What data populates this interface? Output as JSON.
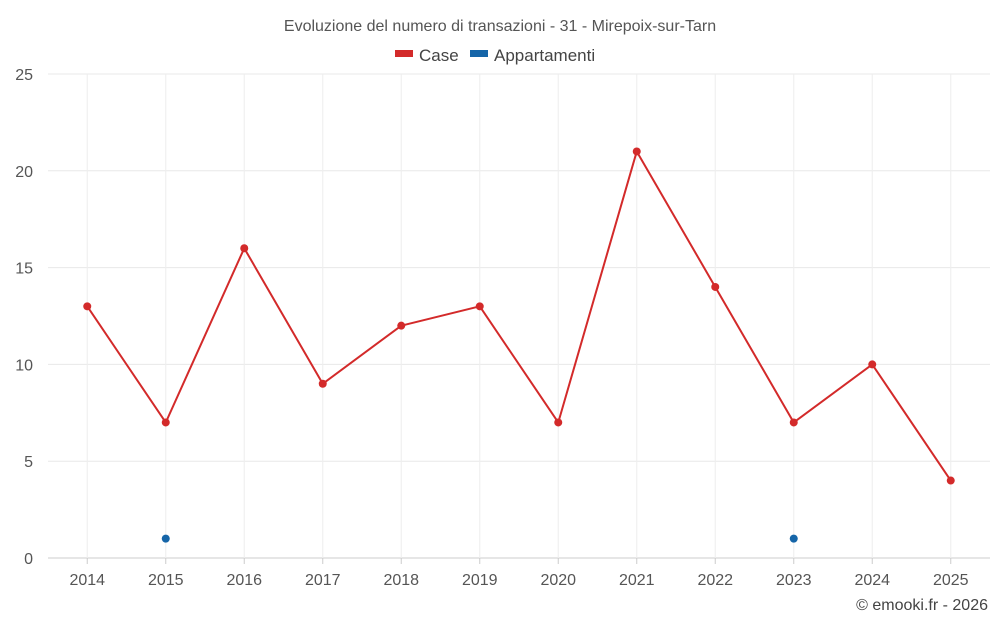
{
  "chart_data": {
    "type": "line",
    "title": "Evoluzione del numero di transazioni - 31 - Mirepoix-sur-Tarn",
    "categories": [
      "2014",
      "2015",
      "2016",
      "2017",
      "2018",
      "2019",
      "2020",
      "2021",
      "2022",
      "2023",
      "2024",
      "2025"
    ],
    "ylim": [
      0,
      25
    ],
    "yticks": [
      0,
      5,
      10,
      15,
      20,
      25
    ],
    "grid": true,
    "legend_position": "top-center",
    "series": [
      {
        "name": "Case",
        "color": "#d32a2a",
        "values": [
          13,
          7,
          16,
          9,
          12,
          13,
          7,
          21,
          14,
          7,
          10,
          4
        ]
      },
      {
        "name": "Appartamenti",
        "color": "#1565a8",
        "values": [
          null,
          1,
          null,
          null,
          null,
          null,
          null,
          null,
          null,
          1,
          null,
          null
        ]
      }
    ]
  },
  "credit": "© emooki.fr - 2026"
}
